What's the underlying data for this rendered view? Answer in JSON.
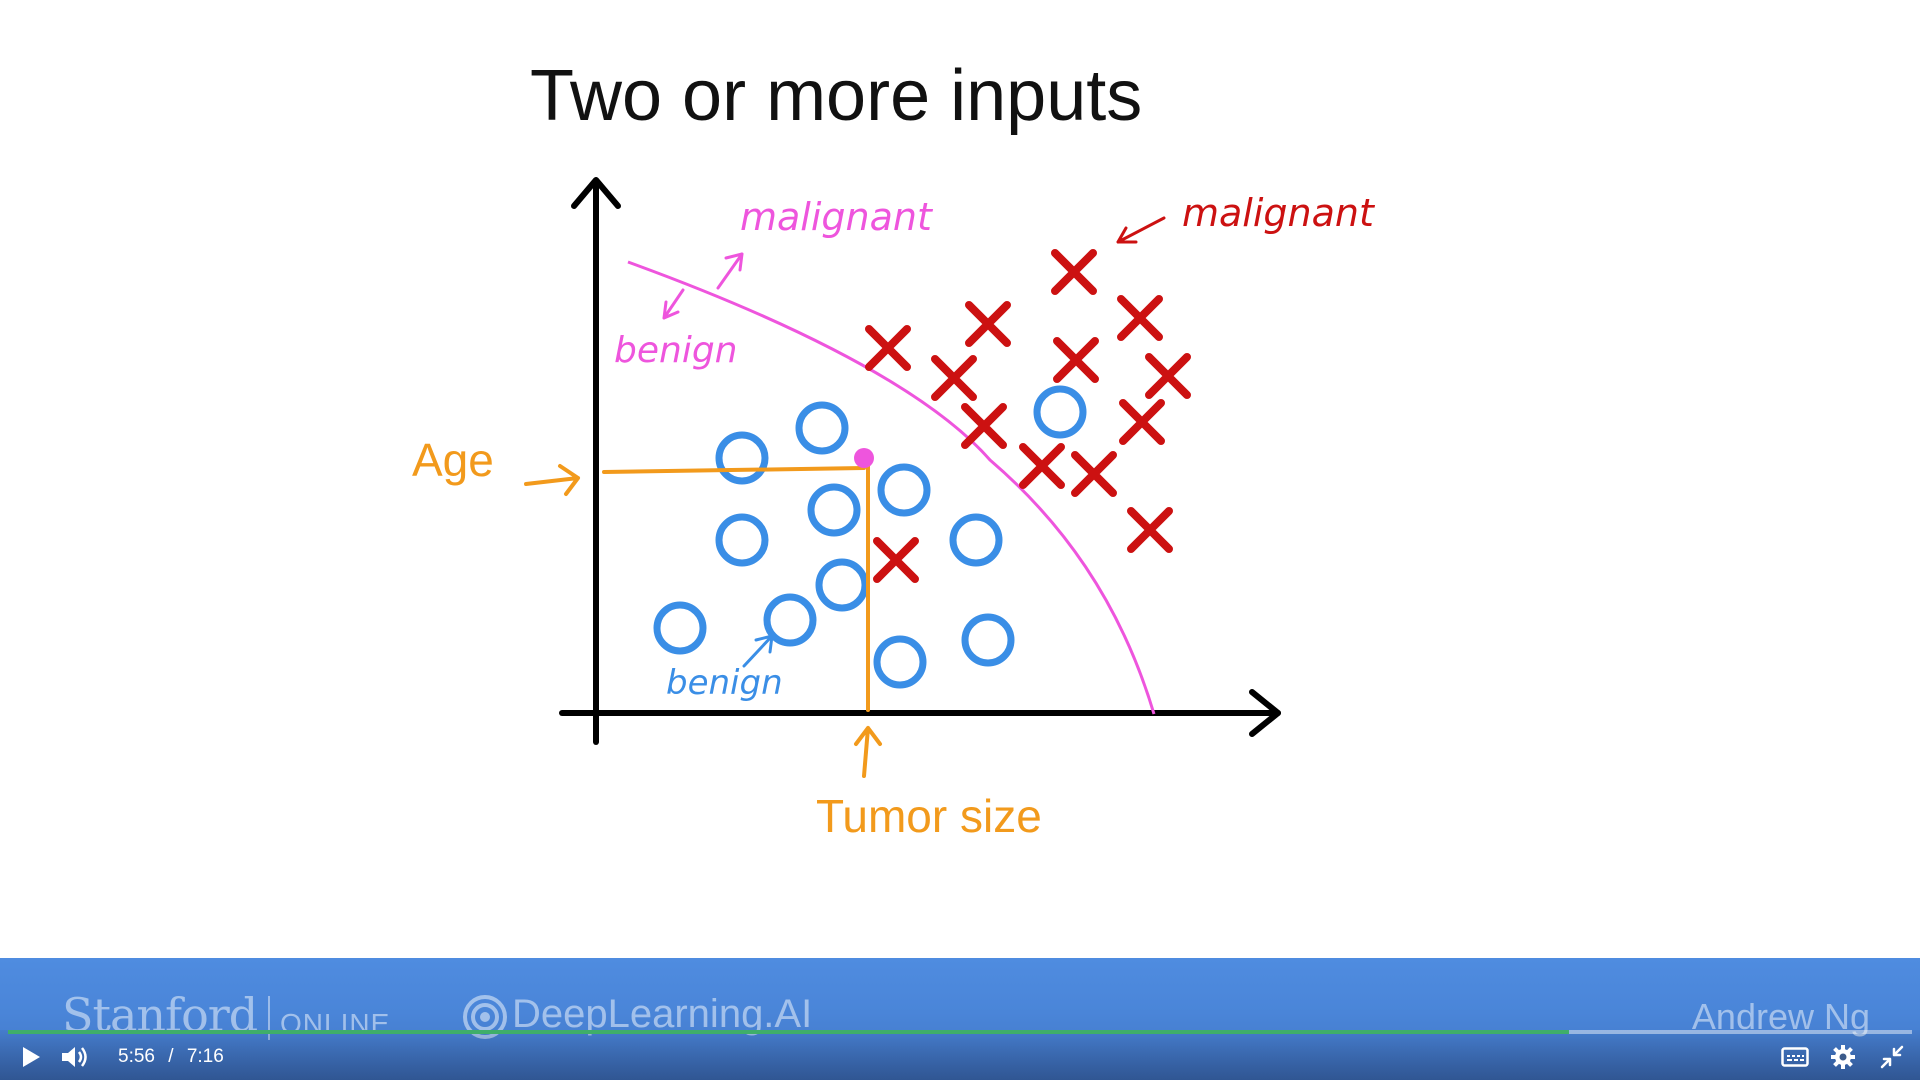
{
  "slide": {
    "title": "Two or more inputs",
    "labels": {
      "malignant_boundary": "malignant",
      "benign_boundary": "benign",
      "malignant_cluster": "malignant",
      "benign_cluster": "benign",
      "y_axis": "Age",
      "x_axis": "Tumor size"
    },
    "colors": {
      "axis": "#000000",
      "boundary": "#ee55dd",
      "malignant": "#cc1111",
      "benign": "#3a8ee6",
      "feature": "#f29a1c"
    }
  },
  "watermark": {
    "stanford": "Stanford",
    "online": "ONLINE",
    "deeplearning": "DeepLearning.AI",
    "instructor": "Andrew Ng"
  },
  "player": {
    "current_time": "5:56",
    "separator": "/",
    "duration": "7:16",
    "progress_fraction": 0.82,
    "icons": [
      "play-icon",
      "volume-icon",
      "captions-icon",
      "settings-icon",
      "exit-fullscreen-icon"
    ]
  }
}
